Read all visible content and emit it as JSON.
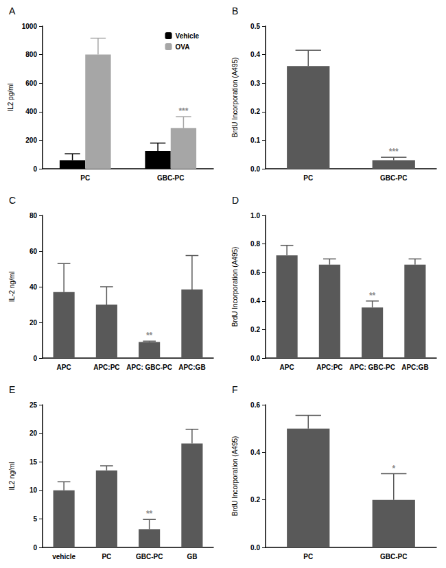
{
  "chart_data": [
    {
      "type": "bar",
      "label": "A",
      "y_label": "IL2 pg/ml",
      "categories": [
        "PC",
        "GBC-PC"
      ],
      "series": [
        {
          "name": "Vehicle",
          "color": "#000000",
          "values": [
            60,
            125
          ],
          "errors": [
            45,
            55
          ]
        },
        {
          "name": "OVA",
          "color": "#a6a6a6",
          "values": [
            800,
            285
          ],
          "errors": [
            115,
            80
          ]
        }
      ],
      "ylim": [
        0,
        1000
      ],
      "yticks": [
        0,
        200,
        400,
        600,
        800,
        1000
      ],
      "grid": false,
      "legend": "top-right",
      "annotations": [
        {
          "category": "GBC-PC",
          "series": "OVA",
          "text": "***"
        }
      ]
    },
    {
      "type": "bar",
      "label": "B",
      "y_label": "BrdU Incorporation (A495)",
      "categories": [
        "PC",
        "GBC-PC"
      ],
      "values": [
        0.36,
        0.03
      ],
      "errors": [
        0.055,
        0.01
      ],
      "color": "#595959",
      "ylim": [
        0,
        0.5
      ],
      "yticks": [
        {
          "value": 0,
          "label": "0.0"
        },
        0.1,
        0.2,
        0.3,
        0.4,
        0.5
      ],
      "grid": false,
      "annotations": [
        {
          "category": "GBC-PC",
          "text": "***"
        }
      ]
    },
    {
      "type": "bar",
      "label": "C",
      "y_label": "IL-2 ng/ml",
      "categories": [
        "APC",
        "APC:PC",
        "APC: GBC-PC",
        "APC:GB"
      ],
      "values": [
        37,
        30,
        9,
        38.5
      ],
      "errors": [
        16,
        10,
        0.5,
        19
      ],
      "color": "#595959",
      "ylim": [
        0,
        80
      ],
      "yticks": [
        0,
        20,
        40,
        60,
        80
      ],
      "grid": false,
      "annotations": [
        {
          "category": "APC: GBC-PC",
          "text": "**"
        }
      ]
    },
    {
      "type": "bar",
      "label": "D",
      "y_label": "BrdU Incorporation (A495)",
      "categories": [
        "APC",
        "APC:PC",
        "APC: GBC-PC",
        "APC:GB"
      ],
      "values": [
        0.72,
        0.655,
        0.355,
        0.655
      ],
      "errors": [
        0.07,
        0.04,
        0.045,
        0.04
      ],
      "color": "#595959",
      "ylim": [
        0,
        1
      ],
      "yticks": [
        {
          "value": 0,
          "label": "0.0"
        },
        0.2,
        0.4,
        0.6,
        0.8,
        {
          "value": 1,
          "label": "1.0"
        }
      ],
      "grid": false,
      "annotations": [
        {
          "category": "APC: GBC-PC",
          "text": "**"
        }
      ]
    },
    {
      "type": "bar",
      "label": "E",
      "y_label": "IL2 ng/ml",
      "categories": [
        "vehicle",
        "PC",
        "GBC-PC",
        "GB"
      ],
      "values": [
        10,
        13.5,
        3.2,
        18.2
      ],
      "errors": [
        1.5,
        0.8,
        1.7,
        2.5
      ],
      "color": "#595959",
      "ylim": [
        0,
        25
      ],
      "yticks": [
        0,
        5,
        10,
        15,
        20,
        25
      ],
      "grid": false,
      "annotations": [
        {
          "category": "GBC-PC",
          "text": "**"
        }
      ]
    },
    {
      "type": "bar",
      "label": "F",
      "y_label": "BrdU Incorporation (A495)",
      "categories": [
        "PC",
        "GBC-PC"
      ],
      "values": [
        0.5,
        0.2
      ],
      "errors": [
        0.055,
        0.11
      ],
      "color": "#595959",
      "ylim": [
        0,
        0.6
      ],
      "yticks": [
        {
          "value": 0,
          "label": "0.0"
        },
        0.2,
        0.4,
        0.6
      ],
      "grid": false,
      "annotations": [
        {
          "category": "GBC-PC",
          "text": "*"
        }
      ]
    }
  ]
}
